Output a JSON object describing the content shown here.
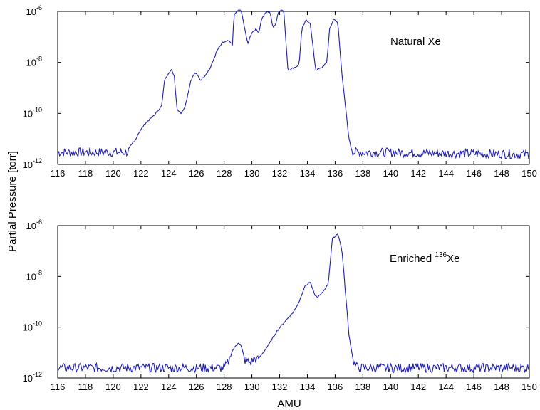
{
  "figure": {
    "ylabel": "Partial Pressure [torr]",
    "xlabel": "AMU"
  },
  "chart_data": [
    {
      "type": "line",
      "annotation": {
        "main": "Natural Xe",
        "sup": ""
      },
      "xlim": [
        116,
        150
      ],
      "ylim": [
        1e-12,
        1e-06
      ],
      "yscale": "log",
      "xticks": [
        "116",
        "118",
        "120",
        "122",
        "124",
        "126",
        "128",
        "130",
        "132",
        "134",
        "136",
        "138",
        "140",
        "142",
        "144",
        "146",
        "148",
        "150"
      ],
      "yticks": [
        {
          "base": "10",
          "exp": "-12",
          "value": 1e-12
        },
        {
          "base": "10",
          "exp": "-10",
          "value": 1e-10
        },
        {
          "base": "10",
          "exp": "-8",
          "value": 1e-08
        },
        {
          "base": "10",
          "exp": "-6",
          "value": 1e-06
        }
      ],
      "grid": false,
      "color": "#1f1fb4",
      "series": [
        {
          "points": [
            [
              116.0,
              3e-12
            ],
            [
              121.0,
              3e-12
            ],
            [
              121.3,
              4e-12
            ],
            [
              121.8,
              1.6e-11
            ],
            [
              122.3,
              4e-11
            ],
            [
              123.0,
              9e-11
            ],
            [
              123.5,
              2e-10
            ],
            [
              123.7,
              2e-09
            ],
            [
              124.0,
              4e-09
            ],
            [
              124.2,
              5e-09
            ],
            [
              124.4,
              3e-09
            ],
            [
              124.6,
              1.5e-10
            ],
            [
              124.9,
              1e-10
            ],
            [
              125.2,
              2e-10
            ],
            [
              125.6,
              2e-09
            ],
            [
              125.9,
              4e-09
            ],
            [
              126.1,
              3e-09
            ],
            [
              126.3,
              2e-09
            ],
            [
              126.6,
              3e-09
            ],
            [
              127.0,
              6e-09
            ],
            [
              127.5,
              3e-08
            ],
            [
              127.9,
              6e-08
            ],
            [
              128.3,
              7e-08
            ],
            [
              128.6,
              5e-08
            ],
            [
              128.7,
              7e-07
            ],
            [
              129.0,
              1.1e-06
            ],
            [
              129.2,
              1.2e-06
            ],
            [
              129.5,
              2e-07
            ],
            [
              129.7,
              5e-08
            ],
            [
              129.8,
              8e-08
            ],
            [
              130.0,
              1.5e-07
            ],
            [
              130.3,
              2e-07
            ],
            [
              130.5,
              1.5e-07
            ],
            [
              130.7,
              5e-07
            ],
            [
              131.0,
              9e-07
            ],
            [
              131.3,
              1e-06
            ],
            [
              131.5,
              2.5e-07
            ],
            [
              131.7,
              3e-07
            ],
            [
              131.9,
              9e-07
            ],
            [
              132.1,
              1.2e-06
            ],
            [
              132.3,
              1e-06
            ],
            [
              132.6,
              5e-09
            ],
            [
              133.0,
              6e-09
            ],
            [
              133.4,
              8e-09
            ],
            [
              133.6,
              2e-07
            ],
            [
              133.9,
              4.5e-07
            ],
            [
              134.2,
              3.5e-07
            ],
            [
              134.6,
              5e-09
            ],
            [
              135.0,
              6e-09
            ],
            [
              135.4,
              1e-08
            ],
            [
              135.6,
              2e-07
            ],
            [
              135.9,
              5e-07
            ],
            [
              136.2,
              3.5e-07
            ],
            [
              136.5,
              3e-09
            ],
            [
              136.8,
              1e-10
            ],
            [
              137.0,
              1e-11
            ],
            [
              137.3,
              3e-12
            ],
            [
              138.0,
              3e-12
            ],
            [
              150.0,
              2.5e-12
            ]
          ],
          "noise_floor": 3e-12
        }
      ]
    },
    {
      "type": "line",
      "annotation": {
        "main": "Enriched ",
        "sup": "136",
        "tail": "Xe"
      },
      "xlim": [
        116,
        150
      ],
      "ylim": [
        1e-12,
        1e-06
      ],
      "yscale": "log",
      "xticks": [
        "116",
        "118",
        "120",
        "122",
        "124",
        "126",
        "128",
        "130",
        "132",
        "134",
        "136",
        "138",
        "140",
        "142",
        "144",
        "146",
        "148",
        "150"
      ],
      "yticks": [
        {
          "base": "10",
          "exp": "-12",
          "value": 1e-12
        },
        {
          "base": "10",
          "exp": "-10",
          "value": 1e-10
        },
        {
          "base": "10",
          "exp": "-8",
          "value": 1e-08
        },
        {
          "base": "10",
          "exp": "-6",
          "value": 1e-06
        }
      ],
      "grid": false,
      "color": "#1f1fb4",
      "series": [
        {
          "points": [
            [
              116.0,
              2.5e-12
            ],
            [
              128.0,
              2.5e-12
            ],
            [
              128.3,
              4e-12
            ],
            [
              128.6,
              1.2e-11
            ],
            [
              129.0,
              2.5e-11
            ],
            [
              129.2,
              2e-11
            ],
            [
              129.5,
              5e-12
            ],
            [
              129.9,
              4e-12
            ],
            [
              130.2,
              6e-12
            ],
            [
              130.4,
              5e-12
            ],
            [
              130.8,
              1e-11
            ],
            [
              131.2,
              2e-11
            ],
            [
              131.8,
              7e-11
            ],
            [
              132.5,
              2e-10
            ],
            [
              133.0,
              4e-10
            ],
            [
              133.4,
              1e-09
            ],
            [
              133.8,
              4e-09
            ],
            [
              134.2,
              6e-09
            ],
            [
              134.5,
              2e-09
            ],
            [
              134.7,
              1.5e-09
            ],
            [
              135.0,
              2e-09
            ],
            [
              135.5,
              5e-09
            ],
            [
              135.8,
              3e-07
            ],
            [
              136.2,
              5e-07
            ],
            [
              136.5,
              1e-07
            ],
            [
              136.8,
              1e-09
            ],
            [
              137.0,
              5e-11
            ],
            [
              137.3,
              5e-12
            ],
            [
              137.6,
              2.5e-12
            ],
            [
              150.0,
              2.5e-12
            ]
          ],
          "noise_floor": 2.5e-12
        }
      ]
    }
  ]
}
